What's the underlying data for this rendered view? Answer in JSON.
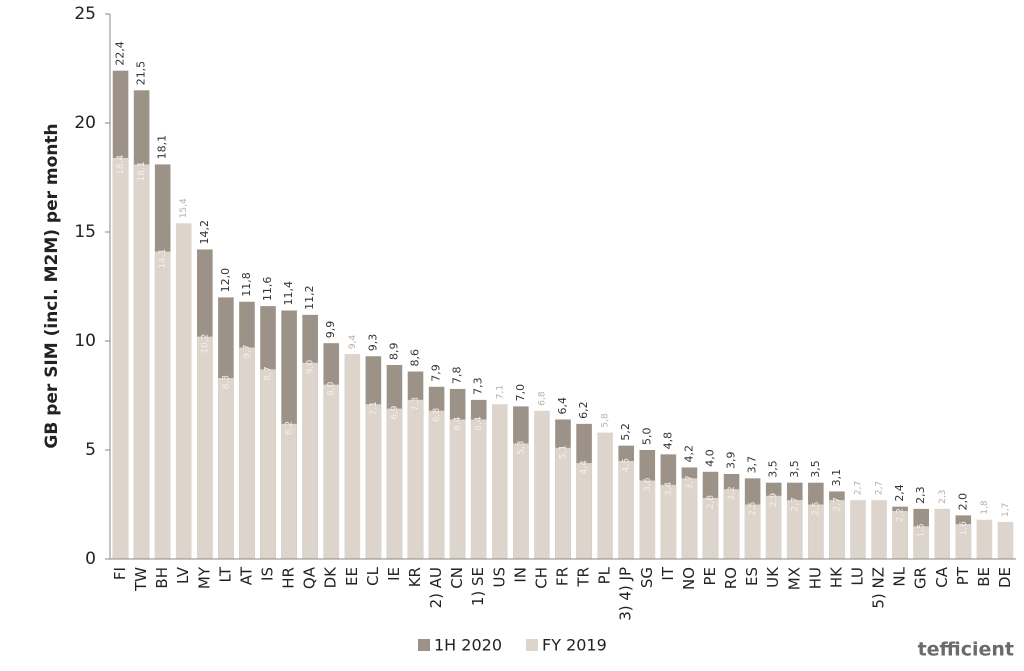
{
  "chart_data": {
    "type": "overlap-bar",
    "y_label": "GB per SIM (incl. M2M) per month",
    "logo": "tefficient",
    "categories": [
      "FI",
      "TW",
      "BH",
      "LV",
      "MY",
      "LT",
      "AT",
      "IS",
      "HR",
      "QA",
      "DK",
      "EE",
      "CL",
      "IE",
      "KR",
      "2) AU",
      "CN",
      "1) SE",
      "US",
      "IN",
      "CH",
      "FR",
      "TR",
      "PL",
      "3) 4) JP",
      "SG",
      "IT",
      "NO",
      "PE",
      "RO",
      "ES",
      "UK",
      "MX",
      "HU",
      "HK",
      "LU",
      "5) NZ",
      "NL",
      "GR",
      "CA",
      "PT",
      "BE",
      "DE"
    ],
    "series": [
      {
        "name": "1H 2020",
        "color": "#9c9287",
        "values": [
          22.4,
          21.5,
          18.1,
          null,
          14.2,
          12.0,
          11.8,
          11.6,
          11.4,
          11.2,
          9.9,
          null,
          9.3,
          8.9,
          8.6,
          7.9,
          7.8,
          7.3,
          null,
          7.0,
          null,
          6.4,
          6.2,
          null,
          5.2,
          5.0,
          4.8,
          4.2,
          4.0,
          3.9,
          3.7,
          3.5,
          3.5,
          3.5,
          3.1,
          null,
          null,
          2.4,
          2.3,
          null,
          2.0,
          null,
          null
        ],
        "value_labels": [
          "22,4",
          "21,5",
          "18,1",
          null,
          "14,2",
          "12,0",
          "11,8",
          "11,6",
          "11,4",
          "11,2",
          "9,9",
          null,
          "9,3",
          "8,9",
          "8,6",
          "7,9",
          "7,8",
          "7,3",
          null,
          "7,0",
          null,
          "6,4",
          "6,2",
          null,
          "5,2",
          "5,0",
          "4,8",
          "4,2",
          "4,0",
          "3,9",
          "3,7",
          "3,5",
          "3,5",
          "3,5",
          "3,1",
          null,
          null,
          "2,4",
          "2,3",
          null,
          "2,0",
          null,
          null
        ]
      },
      {
        "name": "FY 2019",
        "color": "#ddd5cc",
        "values": [
          18.4,
          18.1,
          14.1,
          15.4,
          10.2,
          8.3,
          9.7,
          8.7,
          6.2,
          9.0,
          8.0,
          9.4,
          7.1,
          6.9,
          7.3,
          6.8,
          6.4,
          6.4,
          7.1,
          5.3,
          6.8,
          5.1,
          4.4,
          5.8,
          4.5,
          3.6,
          3.4,
          3.7,
          2.8,
          3.2,
          2.5,
          2.9,
          2.7,
          2.5,
          2.7,
          2.7,
          2.7,
          2.2,
          1.5,
          2.3,
          1.6,
          1.8,
          1.7
        ],
        "value_labels": [
          "18,4",
          "18,1",
          "14,1",
          "15,4",
          "10,2",
          "8,3",
          "9,7",
          "8,7",
          "6,2",
          "9,0",
          "8,0",
          "9,4",
          "7,1",
          "6,9",
          "7,3",
          "6,8",
          "6,4",
          "6,4",
          "7,1",
          "5,3",
          "6,8",
          "5,1",
          "4,4",
          "5,8",
          "4,5",
          "3,6",
          "3,4",
          "3,7",
          "2,8",
          "3,2",
          "2,5",
          "2,9",
          "2,7",
          "2,5",
          "2,7",
          "2,7",
          "2,7",
          "2,2",
          "1,5",
          "2,3",
          "1,6",
          "1,8",
          "1,7"
        ]
      }
    ],
    "ylim": [
      0,
      25
    ],
    "yticks": [
      0,
      5,
      10,
      15,
      20,
      25
    ],
    "grid": false
  }
}
